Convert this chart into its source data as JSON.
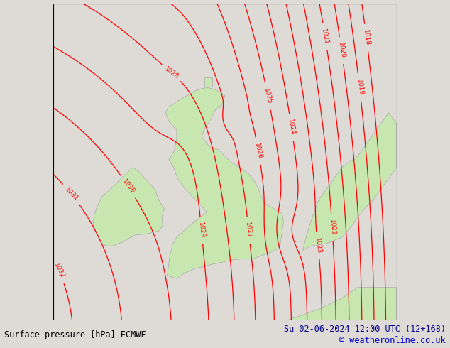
{
  "title_left": "Surface pressure [hPa] ECMWF",
  "title_right": "Su 02-06-2024 12:00 UTC (12+168)",
  "copyright": "© weatheronline.co.uk",
  "bg_color": "#dedad6",
  "land_color": "#c8e6b0",
  "sea_color": "#dedad6",
  "contour_color": "#ff0000",
  "border_color": "#aaaaaa",
  "text_color_left": "#000000",
  "text_color_right": "#00008b",
  "font_size_bottom": 8.5,
  "figsize": [
    6.34,
    4.9
  ],
  "dpi": 100,
  "lon_min": -13.0,
  "lon_max": 9.0,
  "lat_min": 48.0,
  "lat_max": 62.5
}
